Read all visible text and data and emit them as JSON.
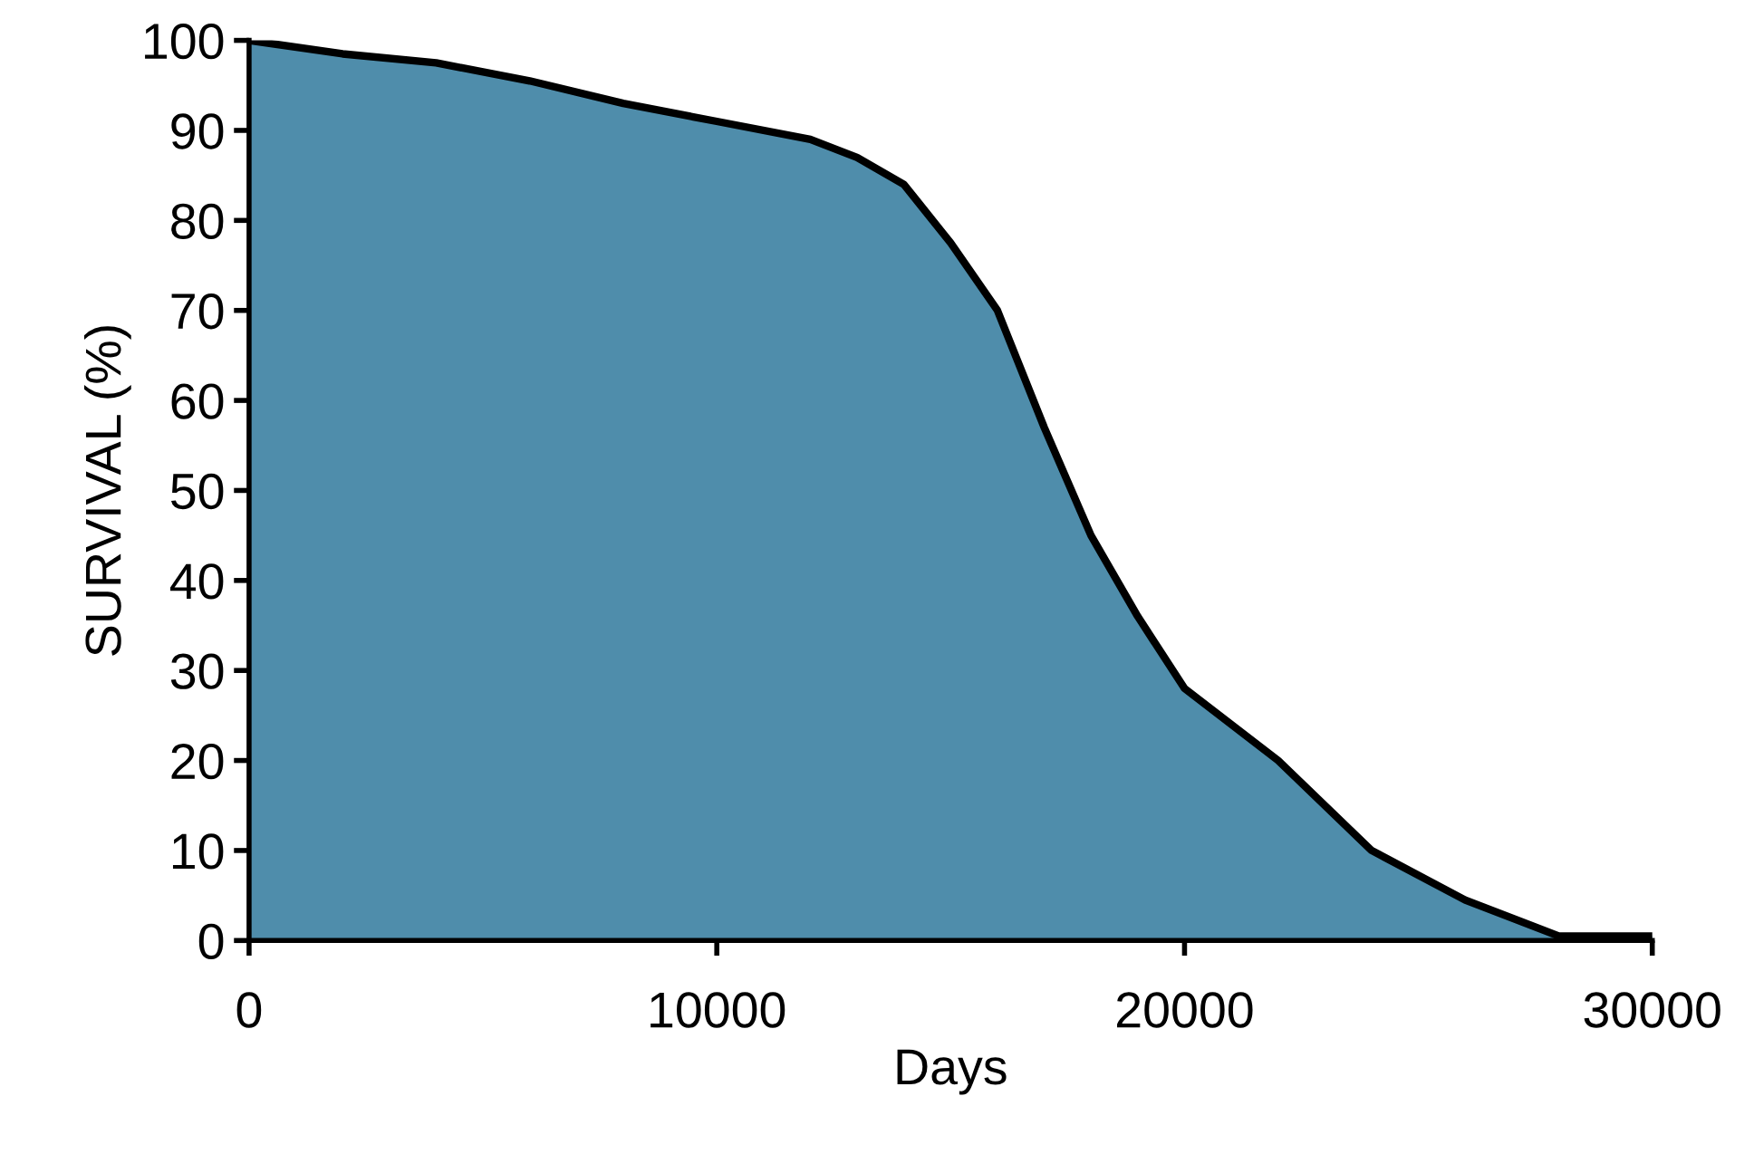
{
  "chart_data": {
    "type": "area",
    "xlabel": "Days",
    "ylabel": "SURVIVAL (%)",
    "x": [
      0,
      2000,
      4000,
      6000,
      8000,
      10000,
      12000,
      13000,
      14000,
      15000,
      16000,
      17000,
      18000,
      19000,
      20000,
      22000,
      24000,
      26000,
      28000,
      30000
    ],
    "series": [
      {
        "color": "#4f8dab",
        "values": [
          100,
          98.5,
          97.5,
          95.5,
          93,
          91,
          89,
          87,
          84,
          77.5,
          70,
          57,
          45,
          36,
          28,
          20,
          10,
          4.5,
          0.5,
          0.5
        ]
      }
    ],
    "xlim": [
      0,
      30000
    ],
    "xticks": [
      0,
      10000,
      20000,
      30000
    ],
    "ylim": [
      0,
      100
    ],
    "yticks": [
      0,
      10,
      20,
      30,
      40,
      50,
      60,
      70,
      80,
      90,
      100
    ],
    "grid": false,
    "legend": false
  }
}
